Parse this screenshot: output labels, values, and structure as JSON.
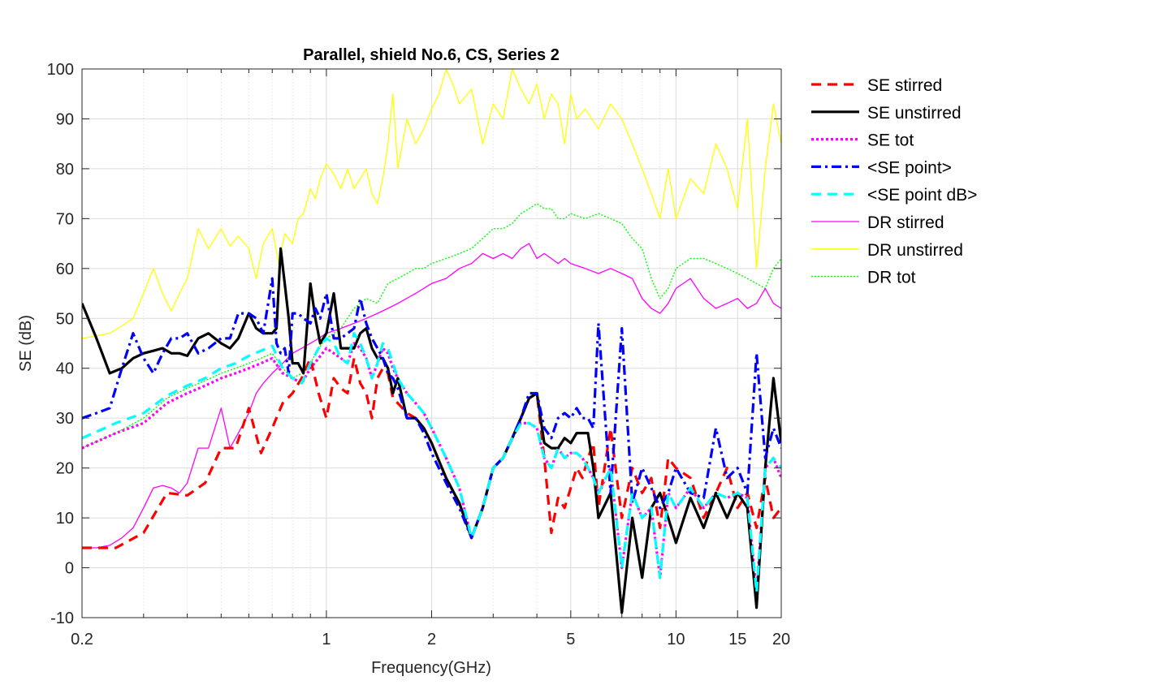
{
  "chart_data": {
    "type": "line",
    "title": "Parallel, shield No.6, CS, Series 2",
    "xlabel": "Frequency(GHz)",
    "ylabel": "SE (dB)",
    "xscale": "log",
    "xlim": [
      0.2,
      20
    ],
    "ylim": [
      -10,
      100
    ],
    "xticks": [
      0.2,
      1,
      2,
      5,
      10,
      15,
      20
    ],
    "xtick_labels": [
      "0.2",
      "1",
      "2",
      "5",
      "10",
      "15",
      "20"
    ],
    "yticks": [
      -10,
      0,
      10,
      20,
      30,
      40,
      50,
      60,
      70,
      80,
      90,
      100
    ],
    "ytick_labels": [
      "-10",
      "0",
      "10",
      "20",
      "30",
      "40",
      "50",
      "60",
      "70",
      "80",
      "90",
      "100"
    ],
    "grid": true,
    "minor_grid": true,
    "legend_position": "outside-right",
    "series": [
      {
        "name": "SE stirred",
        "color": "#ff0000",
        "style": "dashed",
        "x": [
          0.2,
          0.25,
          0.3,
          0.35,
          0.4,
          0.45,
          0.5,
          0.55,
          0.6,
          0.65,
          0.7,
          0.75,
          0.8,
          0.85,
          0.9,
          0.95,
          1.0,
          1.05,
          1.1,
          1.15,
          1.2,
          1.25,
          1.3,
          1.35,
          1.4,
          1.45,
          1.5,
          1.55,
          1.6,
          1.7,
          1.8,
          1.9,
          2.0,
          2.2,
          2.4,
          2.6,
          2.8,
          3.0,
          3.2,
          3.4,
          3.6,
          3.8,
          4.0,
          4.2,
          4.4,
          4.6,
          4.8,
          5.0,
          5.2,
          5.4,
          5.6,
          5.8,
          6.0,
          6.5,
          7.0,
          7.5,
          8.0,
          8.5,
          9.0,
          9.5,
          10,
          11,
          12,
          13,
          14,
          15,
          16,
          17,
          18,
          19,
          20
        ],
        "values": [
          4,
          4,
          7,
          15,
          14.5,
          17,
          24,
          24,
          32,
          23,
          28,
          33,
          35,
          38,
          42,
          35,
          30,
          38,
          36,
          35,
          42,
          37,
          35,
          30,
          38,
          40,
          39,
          34,
          33,
          31,
          30,
          28,
          25,
          18,
          13,
          6,
          12,
          20,
          22,
          26,
          30,
          34,
          35,
          22,
          7,
          14,
          12,
          16,
          20,
          18,
          22,
          25,
          12,
          28,
          10,
          20,
          15,
          18,
          8,
          22,
          20,
          18,
          10,
          15,
          20,
          12,
          15,
          8,
          18,
          10,
          12
        ]
      },
      {
        "name": "SE unstirred",
        "color": "#000000",
        "style": "solid",
        "x": [
          0.2,
          0.22,
          0.24,
          0.26,
          0.28,
          0.3,
          0.32,
          0.34,
          0.36,
          0.38,
          0.4,
          0.43,
          0.46,
          0.5,
          0.53,
          0.56,
          0.6,
          0.63,
          0.66,
          0.7,
          0.72,
          0.74,
          0.76,
          0.78,
          0.8,
          0.83,
          0.86,
          0.9,
          0.93,
          0.96,
          1.0,
          1.05,
          1.1,
          1.15,
          1.2,
          1.25,
          1.3,
          1.35,
          1.4,
          1.45,
          1.5,
          1.55,
          1.6,
          1.7,
          1.8,
          1.9,
          2.0,
          2.2,
          2.4,
          2.6,
          2.8,
          3.0,
          3.2,
          3.4,
          3.6,
          3.8,
          4.0,
          4.2,
          4.4,
          4.6,
          4.8,
          5.0,
          5.2,
          5.4,
          5.6,
          5.8,
          6.0,
          6.5,
          7.0,
          7.5,
          8.0,
          8.5,
          9.0,
          9.5,
          10,
          11,
          12,
          13,
          14,
          15,
          16,
          17,
          18,
          19,
          20
        ],
        "values": [
          53,
          46,
          39,
          40,
          42,
          43,
          43.5,
          44,
          43,
          43,
          42.5,
          46,
          47,
          45,
          44,
          46,
          51,
          48,
          47,
          47,
          48,
          64,
          57,
          50,
          41,
          41,
          39,
          57,
          50,
          45,
          47,
          55,
          44,
          44,
          44,
          47,
          48,
          44,
          42,
          42,
          40,
          35,
          38,
          30,
          30,
          28,
          25,
          18,
          13,
          6,
          12,
          20,
          22,
          26,
          30,
          34,
          35,
          25,
          24,
          24,
          26,
          25,
          27,
          27,
          27,
          20,
          10,
          15,
          -9,
          10,
          -2,
          12,
          15,
          10,
          5,
          14,
          8,
          15,
          10,
          15,
          12,
          -8,
          20,
          38,
          25
        ]
      },
      {
        "name": "SE tot",
        "color": "#ff00ff",
        "style": "dotted",
        "x": [
          0.2,
          0.25,
          0.3,
          0.35,
          0.4,
          0.45,
          0.5,
          0.55,
          0.6,
          0.65,
          0.7,
          0.75,
          0.8,
          0.85,
          0.9,
          0.95,
          1.0,
          1.05,
          1.1,
          1.15,
          1.2,
          1.25,
          1.3,
          1.35,
          1.4,
          1.45,
          1.5,
          1.55,
          1.6,
          1.7,
          1.8,
          1.9,
          2.0,
          2.2,
          2.4,
          2.6,
          2.8,
          3.0,
          3.2,
          3.4,
          3.6,
          3.8,
          4.0,
          4.2,
          4.4,
          4.6,
          4.8,
          5.0,
          5.2,
          5.4,
          5.6,
          5.8,
          6.0,
          6.5,
          7.0,
          7.5,
          8.0,
          8.5,
          9.0,
          9.5,
          10,
          11,
          12,
          13,
          14,
          15,
          16,
          17,
          18,
          19,
          20
        ],
        "values": [
          24,
          27,
          29,
          33,
          35,
          36.5,
          38,
          39,
          40,
          41,
          42,
          39,
          38,
          37,
          40,
          42,
          44,
          43,
          42,
          41,
          45,
          44,
          42,
          38,
          41,
          44,
          43,
          40,
          38,
          35,
          33,
          31,
          28,
          22,
          16,
          6,
          12,
          20,
          22,
          26,
          29,
          29,
          28,
          22,
          20,
          24,
          22,
          23,
          23,
          22,
          20,
          18,
          15,
          20,
          0,
          15,
          10,
          12,
          -2,
          15,
          12,
          16,
          12,
          15,
          14,
          15,
          14,
          -5,
          20,
          22,
          18
        ]
      },
      {
        "name": "<SE point>",
        "color": "#0000ff",
        "style": "dashdot",
        "x": [
          0.2,
          0.22,
          0.24,
          0.26,
          0.28,
          0.3,
          0.32,
          0.34,
          0.36,
          0.38,
          0.4,
          0.43,
          0.46,
          0.5,
          0.53,
          0.56,
          0.6,
          0.63,
          0.66,
          0.7,
          0.72,
          0.74,
          0.76,
          0.78,
          0.8,
          0.83,
          0.86,
          0.9,
          0.93,
          0.96,
          1.0,
          1.05,
          1.1,
          1.15,
          1.2,
          1.25,
          1.3,
          1.35,
          1.4,
          1.45,
          1.5,
          1.55,
          1.6,
          1.7,
          1.8,
          1.9,
          2.0,
          2.2,
          2.4,
          2.6,
          2.8,
          3.0,
          3.2,
          3.4,
          3.6,
          3.8,
          4.0,
          4.2,
          4.4,
          4.6,
          4.8,
          5.0,
          5.2,
          5.4,
          5.6,
          5.8,
          6.0,
          6.5,
          7.0,
          7.5,
          8.0,
          8.5,
          9.0,
          9.5,
          10,
          11,
          12,
          13,
          14,
          15,
          16,
          17,
          18,
          19,
          20
        ],
        "values": [
          30,
          31,
          32,
          40,
          47,
          42,
          39,
          43,
          46,
          46,
          47,
          43,
          44,
          46,
          46,
          51,
          51,
          50,
          47,
          58,
          45,
          43,
          44,
          39,
          51,
          51,
          50,
          49,
          52,
          50,
          55,
          46,
          46,
          47,
          48,
          54,
          49,
          46,
          44,
          42,
          39,
          38,
          36,
          30,
          30,
          27,
          23,
          17,
          12,
          6,
          12,
          20,
          22,
          26,
          30,
          35,
          35,
          28,
          26,
          30,
          31,
          30,
          32,
          30,
          30,
          28,
          49,
          15,
          48,
          13,
          20,
          16,
          12,
          15,
          20,
          15,
          14,
          28,
          18,
          20,
          15,
          43,
          22,
          28,
          24
        ]
      },
      {
        "name": "<SE point dB>",
        "color": "#00ffff",
        "style": "dashed",
        "x": [
          0.2,
          0.25,
          0.3,
          0.35,
          0.4,
          0.45,
          0.5,
          0.55,
          0.6,
          0.65,
          0.7,
          0.75,
          0.8,
          0.85,
          0.9,
          0.95,
          1.0,
          1.05,
          1.1,
          1.15,
          1.2,
          1.25,
          1.3,
          1.35,
          1.4,
          1.45,
          1.5,
          1.55,
          1.6,
          1.7,
          1.8,
          1.9,
          2.0,
          2.2,
          2.4,
          2.6,
          2.8,
          3.0,
          3.2,
          3.4,
          3.6,
          3.8,
          4.0,
          4.2,
          4.4,
          4.6,
          4.8,
          5.0,
          5.2,
          5.4,
          5.6,
          5.8,
          6.0,
          6.5,
          7.0,
          7.5,
          8.0,
          8.5,
          9.0,
          9.5,
          10,
          11,
          12,
          13,
          14,
          15,
          16,
          17,
          18,
          19,
          20
        ],
        "values": [
          26,
          29,
          31,
          34.5,
          36.5,
          38,
          40,
          41,
          42.5,
          43.5,
          44.5,
          40,
          38,
          37,
          41,
          44,
          46,
          45,
          42,
          41,
          47,
          45,
          42,
          38,
          41,
          45,
          44,
          41,
          38,
          35,
          33,
          31,
          28,
          22,
          16,
          6,
          12,
          20,
          22,
          26,
          29,
          29,
          28,
          22,
          20,
          24,
          22,
          23,
          23,
          22,
          20,
          18,
          15,
          20,
          0,
          15,
          10,
          12,
          -2,
          15,
          12,
          16,
          12,
          15,
          14,
          15,
          14,
          -5,
          20,
          22,
          20
        ]
      },
      {
        "name": "DR stirred",
        "color": "#ff00ff",
        "style": "thin",
        "x": [
          0.2,
          0.22,
          0.24,
          0.26,
          0.28,
          0.3,
          0.32,
          0.34,
          0.36,
          0.38,
          0.4,
          0.43,
          0.46,
          0.5,
          0.53,
          0.56,
          0.6,
          0.63,
          0.66,
          0.7,
          0.75,
          0.8,
          0.85,
          0.9,
          0.95,
          1.0,
          1.1,
          1.2,
          1.3,
          1.4,
          1.5,
          1.6,
          1.8,
          2.0,
          2.2,
          2.4,
          2.6,
          2.8,
          3.0,
          3.2,
          3.4,
          3.6,
          3.8,
          4.0,
          4.2,
          4.4,
          4.6,
          4.8,
          5.0,
          5.5,
          6.0,
          6.5,
          7.0,
          7.5,
          8.0,
          8.5,
          9.0,
          9.5,
          10,
          11,
          12,
          13,
          14,
          15,
          16,
          17,
          18,
          19,
          20
        ],
        "values": [
          4,
          4,
          4.5,
          6,
          8,
          12,
          16,
          16.5,
          16,
          15,
          17,
          24,
          24,
          32,
          24,
          27,
          31,
          35,
          37,
          39,
          41,
          43,
          44,
          45,
          46,
          47,
          48,
          49,
          50,
          51,
          52,
          53,
          55,
          57,
          58,
          60,
          61,
          63,
          62,
          63,
          62,
          64,
          65,
          62,
          63,
          62,
          61,
          62,
          61,
          60,
          59,
          60,
          59,
          58,
          54,
          52,
          51,
          53,
          56,
          58,
          54,
          52,
          53,
          54,
          52,
          53,
          56,
          53,
          52
        ]
      },
      {
        "name": "DR unstirred",
        "color": "#ffff00",
        "style": "thin",
        "x": [
          0.2,
          0.22,
          0.24,
          0.26,
          0.28,
          0.3,
          0.32,
          0.34,
          0.36,
          0.38,
          0.4,
          0.43,
          0.46,
          0.5,
          0.53,
          0.56,
          0.6,
          0.63,
          0.66,
          0.7,
          0.73,
          0.76,
          0.8,
          0.83,
          0.86,
          0.9,
          0.93,
          0.96,
          1.0,
          1.05,
          1.1,
          1.15,
          1.2,
          1.25,
          1.3,
          1.35,
          1.4,
          1.45,
          1.5,
          1.55,
          1.6,
          1.7,
          1.8,
          1.9,
          2.0,
          2.1,
          2.2,
          2.3,
          2.4,
          2.6,
          2.8,
          3.0,
          3.2,
          3.4,
          3.6,
          3.8,
          4.0,
          4.2,
          4.4,
          4.6,
          4.8,
          5.0,
          5.2,
          5.5,
          6.0,
          6.5,
          7.0,
          7.5,
          8.0,
          8.5,
          9.0,
          9.5,
          10,
          11,
          12,
          13,
          14,
          15,
          16,
          17,
          18,
          19,
          20
        ],
        "values": [
          46,
          46.5,
          47,
          48.5,
          50,
          55,
          60,
          55,
          51.5,
          55,
          58,
          68,
          64,
          68,
          64.5,
          66.5,
          64,
          58,
          65,
          68,
          61,
          67,
          65,
          70,
          71,
          76,
          74,
          78,
          81,
          79,
          76,
          80,
          76,
          78,
          80,
          75,
          73,
          78,
          85,
          95,
          80,
          90,
          85,
          88,
          92,
          95,
          100,
          97,
          93,
          96,
          85,
          93,
          90,
          100,
          96,
          93,
          97,
          90,
          95,
          93,
          85,
          95,
          90,
          92,
          88,
          93,
          90,
          85,
          80,
          75,
          70,
          80,
          70,
          78,
          75,
          85,
          80,
          72,
          90,
          60,
          80,
          93,
          85
        ]
      },
      {
        "name": "DR tot",
        "color": "#00ff00",
        "style": "dotted-thin",
        "x": [
          0.2,
          0.25,
          0.3,
          0.35,
          0.4,
          0.45,
          0.5,
          0.55,
          0.6,
          0.65,
          0.7,
          0.75,
          0.8,
          0.85,
          0.9,
          0.95,
          1.0,
          1.1,
          1.2,
          1.3,
          1.4,
          1.5,
          1.6,
          1.7,
          1.8,
          1.9,
          2.0,
          2.2,
          2.4,
          2.6,
          2.8,
          3.0,
          3.2,
          3.4,
          3.6,
          3.8,
          4.0,
          4.2,
          4.4,
          4.6,
          4.8,
          5.0,
          5.5,
          6.0,
          6.5,
          7.0,
          7.5,
          8.0,
          8.5,
          9.0,
          9.5,
          10,
          11,
          12,
          13,
          14,
          15,
          16,
          17,
          18,
          19,
          20
        ],
        "values": [
          24,
          27,
          30,
          34,
          36,
          37.5,
          39,
          40,
          41,
          42,
          43,
          40,
          38,
          39,
          41,
          44,
          46,
          48,
          52,
          54,
          53,
          57,
          58,
          59,
          60,
          60,
          61,
          62,
          63,
          64,
          66,
          68,
          68,
          69,
          71,
          72,
          73,
          72,
          72,
          70,
          70,
          71,
          70,
          71,
          70,
          69,
          66,
          64,
          58,
          54,
          56,
          60,
          62,
          62,
          61,
          60,
          59,
          58,
          57,
          56,
          60,
          62
        ]
      }
    ]
  }
}
